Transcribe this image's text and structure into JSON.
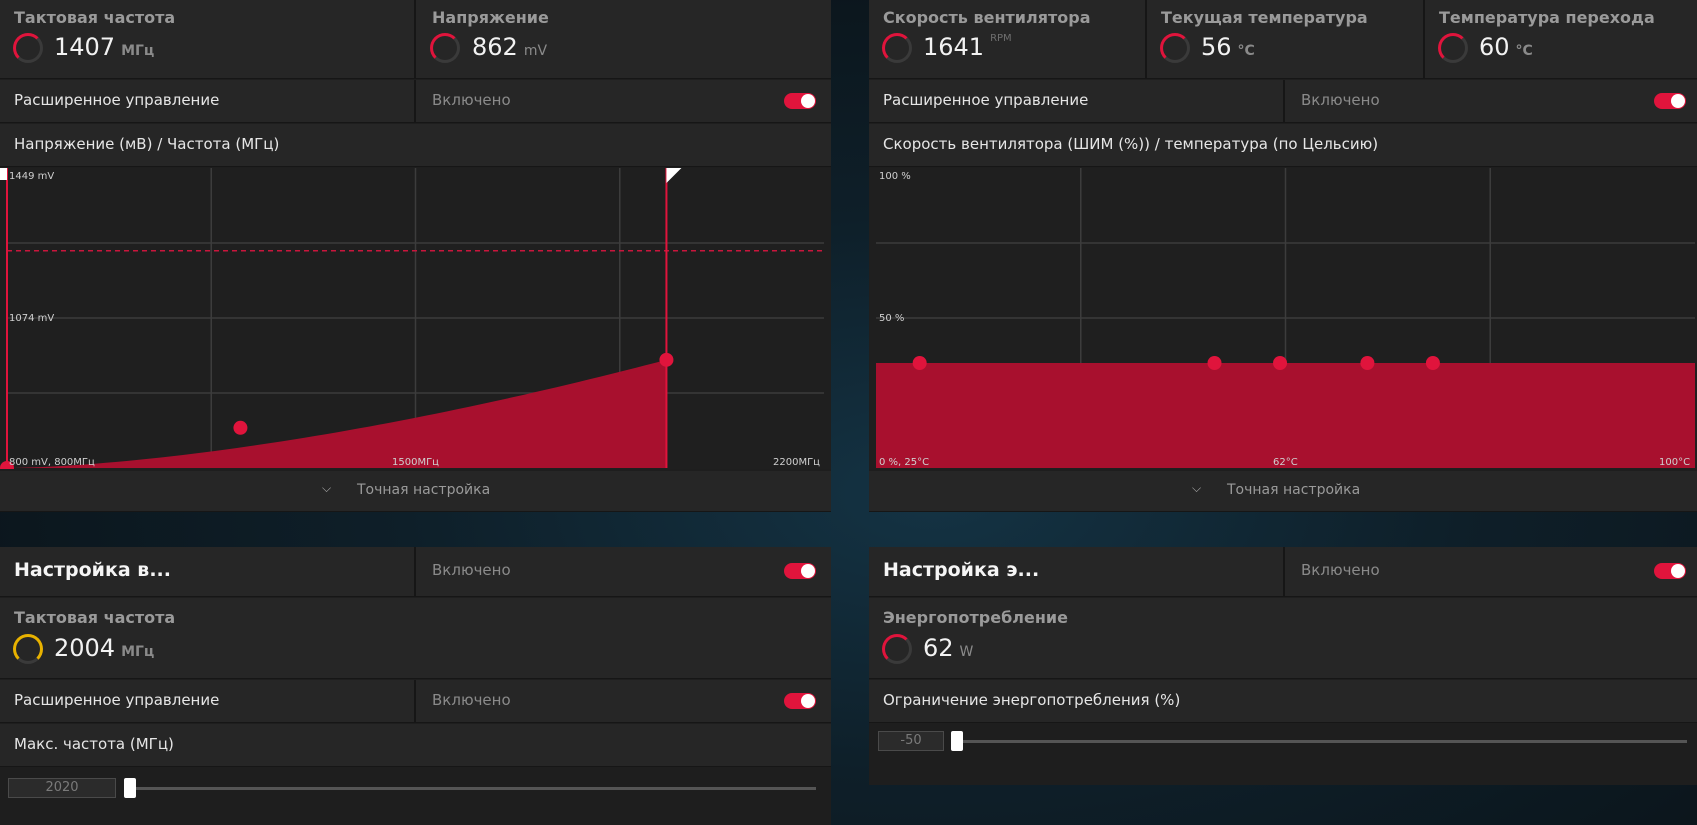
{
  "gpu_tuning": {
    "clock": {
      "label": "Тактовая частота",
      "value": "1407",
      "unit": "МГц"
    },
    "voltage": {
      "label": "Напряжение",
      "value": "862",
      "unit": "mV"
    },
    "advanced_label": "Расширенное управление",
    "advanced_status": "Включено",
    "chart_title": "Напряжение (мВ) / Частота (МГц)",
    "fine_tune": "Точная настройка",
    "accent": "#e0143c"
  },
  "fan_tuning": {
    "fan_speed": {
      "label": "Скорость вентилятора",
      "value": "1641",
      "unit": "RPM"
    },
    "temp": {
      "label": "Текущая температура",
      "value": "56",
      "unit": "°C"
    },
    "junction": {
      "label": "Температура перехода",
      "value": "60",
      "unit": "°C"
    },
    "advanced_label": "Расширенное управление",
    "advanced_status": "Включено",
    "chart_title": "Скорость вентилятора (ШИМ (%)) / температура (по Цельсию)",
    "fine_tune": "Точная настройка"
  },
  "vram_tuning": {
    "title": "Настройка в...",
    "status": "Включено",
    "clock": {
      "label": "Тактовая частота",
      "value": "2004",
      "unit": "МГц"
    },
    "advanced_label": "Расширенное управление",
    "advanced_status": "Включено",
    "max_freq_label": "Макс. частота (МГц)",
    "slider_value": "2020"
  },
  "power_tuning": {
    "title": "Настройка э...",
    "status": "Включено",
    "power": {
      "label": "Энергопотребление",
      "value": "62",
      "unit": "W"
    },
    "limit_label": "Ограничение энергопотребления (%)",
    "slider_value": "-50"
  },
  "chart_data": [
    {
      "type": "area",
      "title": "Напряжение (мВ) / Частота (МГц)",
      "x_unit": "МГц",
      "y_unit": "mV",
      "x": [
        800,
        1200,
        1930
      ],
      "y": [
        800,
        887,
        1034
      ],
      "xlim": [
        800,
        2200
      ],
      "ylim": [
        800,
        1449
      ],
      "tick_labels": {
        "y_top": "1449 mV",
        "y_mid": "1074 mV",
        "origin": "800 mV, 800МГц",
        "x_mid": "1500МГц",
        "x_max": "2200МГц"
      },
      "reference_line_y": 1270,
      "grid": true
    },
    {
      "type": "area",
      "title": "Скорость вентилятора (ШИМ (%)) / температура (по Цельсию)",
      "x_unit": "°C",
      "y_unit": "%",
      "x": [
        29,
        56,
        62,
        70,
        76
      ],
      "y": [
        35,
        35,
        35,
        35,
        35
      ],
      "xlim": [
        25,
        100
      ],
      "ylim": [
        0,
        100
      ],
      "tick_labels": {
        "y_top": "100 %",
        "y_mid": "50 %",
        "origin": "0 %, 25°C",
        "x_mid": "62°C",
        "x_max": "100°C"
      },
      "grid": true
    }
  ]
}
